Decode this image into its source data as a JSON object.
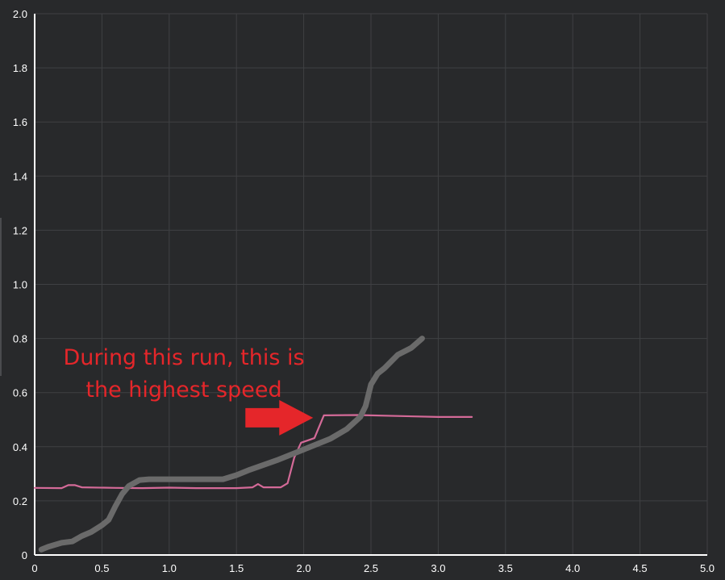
{
  "chart_data": {
    "type": "line",
    "title": "",
    "xlabel": "",
    "ylabel": "",
    "xlim": [
      0,
      5
    ],
    "ylim": [
      0,
      2
    ],
    "x_ticks": [
      "0",
      "0.5",
      "1.0",
      "1.5",
      "2.0",
      "2.5",
      "3.0",
      "3.5",
      "4.0",
      "4.5",
      "5.0"
    ],
    "y_ticks": [
      "0",
      "0.2",
      "0.4",
      "0.6",
      "0.8",
      "1.0",
      "1.2",
      "1.4",
      "1.6",
      "1.8",
      "2.0"
    ],
    "grid": true,
    "legend": "none",
    "series": [
      {
        "color": "#d46a98",
        "points": [
          [
            0.0,
            0.248
          ],
          [
            0.2,
            0.247
          ],
          [
            0.25,
            0.258
          ],
          [
            0.3,
            0.258
          ],
          [
            0.35,
            0.25
          ],
          [
            0.6,
            0.248
          ],
          [
            0.8,
            0.247
          ],
          [
            1.0,
            0.249
          ],
          [
            1.2,
            0.247
          ],
          [
            1.5,
            0.247
          ],
          [
            1.62,
            0.25
          ],
          [
            1.66,
            0.262
          ],
          [
            1.7,
            0.25
          ],
          [
            1.83,
            0.25
          ],
          [
            1.88,
            0.265
          ],
          [
            1.93,
            0.36
          ],
          [
            1.98,
            0.415
          ],
          [
            2.08,
            0.432
          ],
          [
            2.15,
            0.516
          ],
          [
            2.4,
            0.517
          ],
          [
            3.0,
            0.51
          ],
          [
            3.25,
            0.51
          ]
        ]
      },
      {
        "color": "#6a6a6a",
        "points": [
          [
            0.05,
            0.02
          ],
          [
            0.1,
            0.03
          ],
          [
            0.2,
            0.045
          ],
          [
            0.28,
            0.05
          ],
          [
            0.35,
            0.07
          ],
          [
            0.42,
            0.085
          ],
          [
            0.5,
            0.11
          ],
          [
            0.55,
            0.13
          ],
          [
            0.6,
            0.18
          ],
          [
            0.65,
            0.225
          ],
          [
            0.7,
            0.255
          ],
          [
            0.78,
            0.277
          ],
          [
            0.85,
            0.28
          ],
          [
            1.0,
            0.28
          ],
          [
            1.2,
            0.28
          ],
          [
            1.4,
            0.28
          ],
          [
            1.5,
            0.295
          ],
          [
            1.6,
            0.315
          ],
          [
            1.8,
            0.35
          ],
          [
            2.0,
            0.39
          ],
          [
            2.2,
            0.43
          ],
          [
            2.32,
            0.465
          ],
          [
            2.42,
            0.51
          ],
          [
            2.46,
            0.55
          ],
          [
            2.5,
            0.63
          ],
          [
            2.55,
            0.67
          ],
          [
            2.6,
            0.69
          ],
          [
            2.7,
            0.74
          ],
          [
            2.8,
            0.765
          ],
          [
            2.88,
            0.8
          ]
        ]
      }
    ],
    "annotation": {
      "lines": [
        "During this run, this is",
        "the highest speed"
      ],
      "arrow_color": "#e5262a",
      "arrow_target": [
        2.1,
        0.51
      ]
    }
  }
}
